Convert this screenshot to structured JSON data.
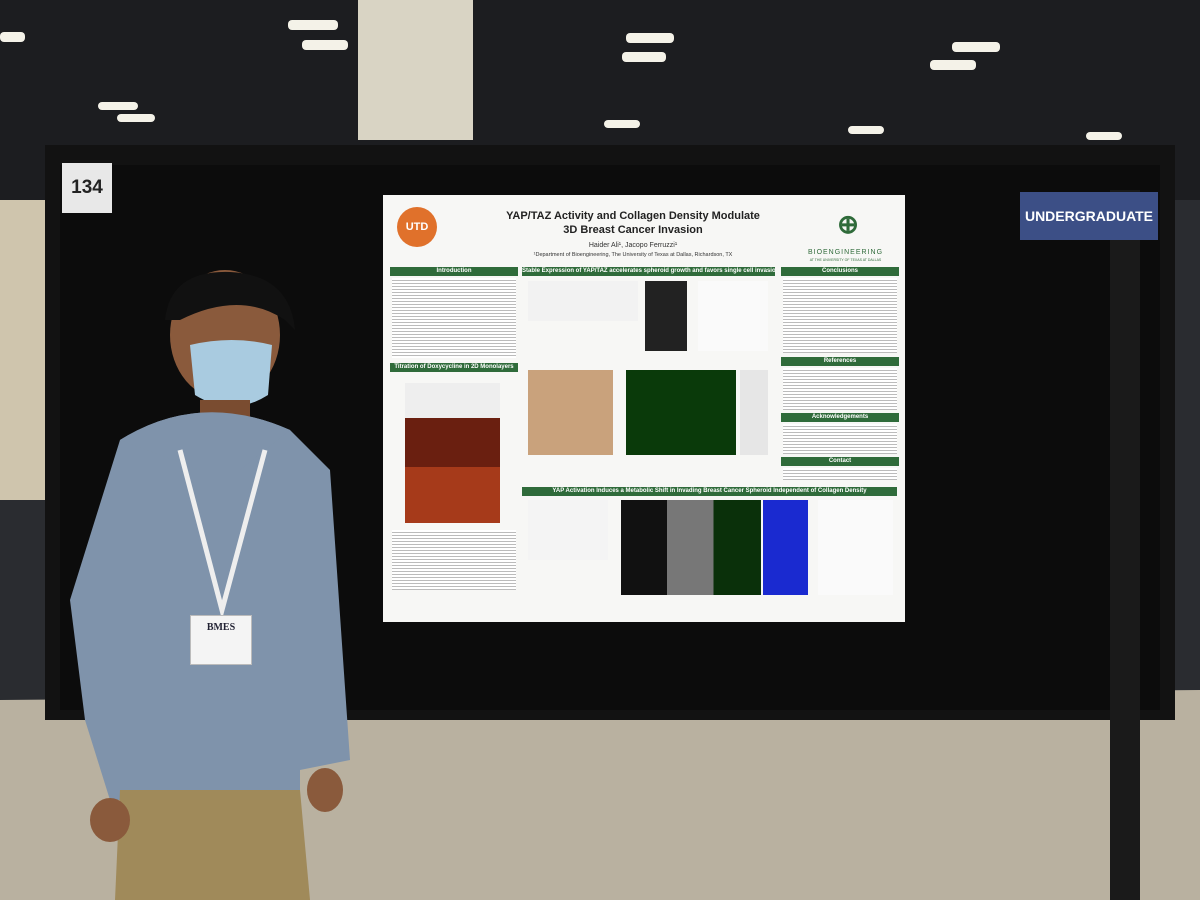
{
  "board_number": "134",
  "category_sign": "UNDERGRADUATE",
  "poster": {
    "logo": "UTD",
    "title_lines": [
      "YAP/TAZ Activity and Collagen Density Modulate",
      "3D Breast Cancer Invasion"
    ],
    "authors": "Haider Ali¹, Jacopo Ferruzzi¹",
    "affiliation": "¹Department of Bioengineering, The University of Texas at Dallas, Richardson, TX",
    "department_logo": "BIOENGINEERING",
    "department_sub": "AT THE UNIVERSITY OF TEXAS AT DALLAS",
    "sections": {
      "introduction": "Introduction",
      "titration": "Titration of Doxycycline in 2D Monolayers",
      "stable_expression": "Stable Expression of YAP/TAZ accelerates spheroid growth and favors single cell invasion",
      "metabolic_shift": "YAP Activation Induces a Metabolic Shift in Invading Breast Cancer Spheroid Independent of Collagen Density",
      "conclusions": "Conclusions",
      "references": "References",
      "acknowledgements": "Acknowledgements",
      "contact": "Contact"
    }
  },
  "badge": "BMES"
}
